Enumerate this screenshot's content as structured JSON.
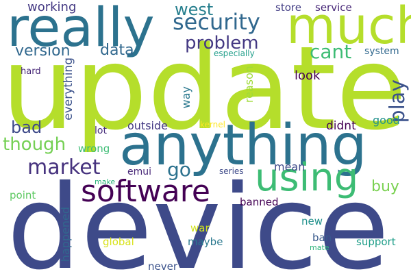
{
  "words": [
    {
      "text": "device",
      "color": "#3e4a89"
    },
    {
      "text": "update",
      "color": "#b5de2b"
    },
    {
      "text": "anything",
      "color": "#2c728e"
    },
    {
      "text": "really",
      "color": "#2c728e"
    },
    {
      "text": "much",
      "color": "#b5de2b"
    },
    {
      "text": "using",
      "color": "#3dbc74"
    },
    {
      "text": "software",
      "color": "#440154"
    },
    {
      "text": "security",
      "color": "#31688e"
    },
    {
      "text": "market",
      "color": "#46327e"
    },
    {
      "text": "problem",
      "color": "#443983"
    },
    {
      "text": "west",
      "color": "#277f8e"
    },
    {
      "text": "version",
      "color": "#31688e"
    },
    {
      "text": "data",
      "color": "#31688e"
    },
    {
      "text": "cant",
      "color": "#3dbc74"
    },
    {
      "text": "play",
      "color": "#3b528b"
    },
    {
      "text": "though",
      "color": "#75d054"
    },
    {
      "text": "bad",
      "color": "#3e4a89"
    },
    {
      "text": "go",
      "color": "#2c728e"
    },
    {
      "text": "buy",
      "color": "#7ad151"
    },
    {
      "text": "working",
      "color": "#443983"
    },
    {
      "text": "store",
      "color": "#433e85"
    },
    {
      "text": "service",
      "color": "#482878"
    },
    {
      "text": "especially",
      "color": "#1f9e89"
    },
    {
      "text": "system",
      "color": "#31688e"
    },
    {
      "text": "hard",
      "color": "#482878"
    },
    {
      "text": "reason",
      "color": "#a0da39"
    },
    {
      "text": "look",
      "color": "#440154"
    },
    {
      "text": "way",
      "color": "#2a788e"
    },
    {
      "text": "everything",
      "color": "#3b528b"
    },
    {
      "text": "outside",
      "color": "#443983"
    },
    {
      "text": "lot",
      "color": "#472d7b"
    },
    {
      "text": "kernel",
      "color": "#fde725"
    },
    {
      "text": "didnt",
      "color": "#440154"
    },
    {
      "text": "good",
      "color": "#21918c"
    },
    {
      "text": "wrong",
      "color": "#3dbc74"
    },
    {
      "text": "emui",
      "color": "#482878"
    },
    {
      "text": "mean",
      "color": "#3e4a89"
    },
    {
      "text": "make",
      "color": "#2fb47c"
    },
    {
      "text": "series",
      "color": "#3e4a89"
    },
    {
      "text": "point",
      "color": "#5ec962"
    },
    {
      "text": "banned",
      "color": "#440154"
    },
    {
      "text": "happened",
      "color": "#31688e"
    },
    {
      "text": "new",
      "color": "#21918c"
    },
    {
      "text": "war",
      "color": "#d0e11c"
    },
    {
      "text": "maybe",
      "color": "#2a788e"
    },
    {
      "text": "global",
      "color": "#d8e219"
    },
    {
      "text": "ban",
      "color": "#38598c"
    },
    {
      "text": "mate",
      "color": "#2fb47c"
    },
    {
      "text": "support",
      "color": "#1f9e89"
    },
    {
      "text": "never",
      "color": "#3b528b"
    }
  ]
}
